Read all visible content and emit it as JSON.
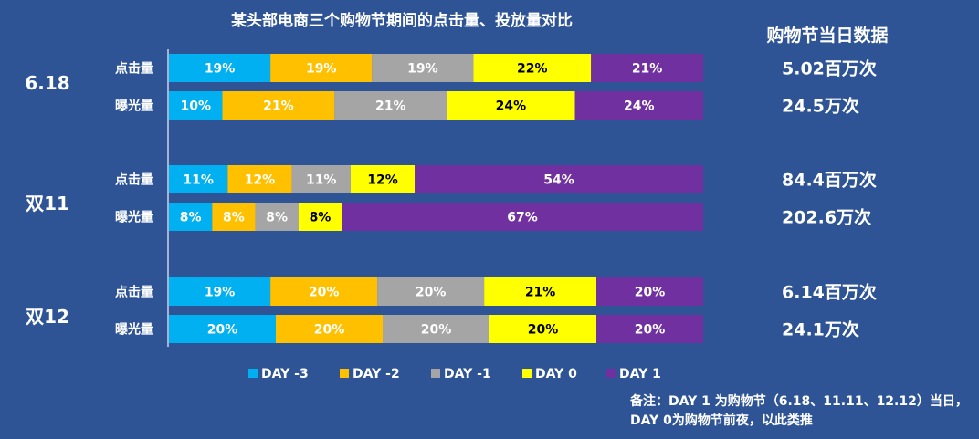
{
  "chart_data": {
    "type": "bar",
    "stacked": "percent",
    "orientation": "horizontal",
    "title": "某头部电商三个购物节期间的点击量、投放量对比",
    "right_header": "购物节当日数据",
    "series": [
      {
        "name": "DAY -3",
        "color": "#00b0f0"
      },
      {
        "name": "DAY -2",
        "color": "#ffc000"
      },
      {
        "name": "DAY -1",
        "color": "#a5a5a5"
      },
      {
        "name": "DAY 0",
        "color": "#ffff00"
      },
      {
        "name": "DAY 1",
        "color": "#7030a0"
      }
    ],
    "groups": [
      {
        "name": "6.18",
        "rows": [
          {
            "label": "点击量",
            "values": [
              19,
              19,
              19,
              22,
              21
            ],
            "total": "5.02百万次"
          },
          {
            "label": "曝光量",
            "values": [
              10,
              21,
              21,
              24,
              24
            ],
            "total": "24.5万次"
          }
        ]
      },
      {
        "name": "双11",
        "rows": [
          {
            "label": "点击量",
            "values": [
              11,
              12,
              11,
              12,
              54
            ],
            "total": "84.4百万次"
          },
          {
            "label": "曝光量",
            "values": [
              8,
              8,
              8,
              8,
              67
            ],
            "total": "202.6万次"
          }
        ]
      },
      {
        "name": "双12",
        "rows": [
          {
            "label": "点击量",
            "values": [
              19,
              20,
              20,
              21,
              20
            ],
            "total": "6.14百万次"
          },
          {
            "label": "曝光量",
            "values": [
              20,
              20,
              20,
              20,
              20
            ],
            "total": "24.1万次"
          }
        ]
      }
    ],
    "legend_position": "bottom",
    "note": "备注：DAY 1 为购物节（6.18、11.11、12.12）当日，DAY 0为购物节前夜，以此类推"
  }
}
